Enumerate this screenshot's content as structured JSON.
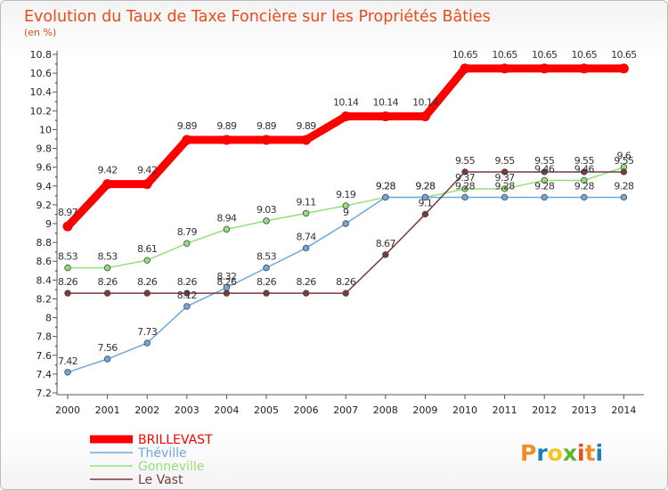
{
  "chart_data": {
    "type": "line",
    "title": "Evolution du Taux de Taxe Foncière sur les Propriétés Bâties",
    "subtitle": "(en %)",
    "xlabel": "",
    "ylabel": "",
    "ylim": [
      7.2,
      10.8
    ],
    "yticks": [
      "7.2",
      "7.4",
      "7.6",
      "7.8",
      "8",
      "8.2",
      "8.4",
      "8.6",
      "8.8",
      "9",
      "9.2",
      "9.4",
      "9.6",
      "9.8",
      "10",
      "10.2",
      "10.4",
      "10.6",
      "10.8"
    ],
    "x": [
      "2000",
      "2001",
      "2002",
      "2003",
      "2004",
      "2005",
      "2006",
      "2007",
      "2008",
      "2009",
      "2010",
      "2011",
      "2012",
      "2013",
      "2014"
    ],
    "series": [
      {
        "name": "BRILLEVAST",
        "color": "#ff0000",
        "values": [
          8.97,
          9.42,
          9.42,
          9.89,
          9.89,
          9.89,
          9.89,
          10.14,
          10.14,
          10.14,
          10.65,
          10.65,
          10.65,
          10.65,
          10.65
        ],
        "labels": [
          "8.97",
          "9.42",
          "9.42",
          "9.89",
          "9.89",
          "9.89",
          "9.89",
          "10.14",
          "10.14",
          "10.14",
          "10.65",
          "10.65",
          "10.65",
          "10.65",
          "10.65"
        ]
      },
      {
        "name": "Théville",
        "color": "#6fa8dc",
        "values": [
          7.42,
          7.56,
          7.73,
          8.12,
          8.32,
          8.53,
          8.74,
          9.0,
          9.28,
          9.28,
          9.28,
          9.28,
          9.28,
          9.28,
          9.28
        ],
        "labels": [
          "7.42",
          "7.56",
          "7.73",
          "8.12",
          "8.32",
          "8.53",
          "8.74",
          "9",
          "9.28",
          "9.28",
          "9.28",
          "9.28",
          "9.28",
          "9.28",
          "9.28"
        ]
      },
      {
        "name": "Gonneville",
        "color": "#93e07a",
        "values": [
          8.53,
          8.53,
          8.61,
          8.79,
          8.94,
          9.03,
          9.11,
          9.19,
          9.28,
          9.28,
          9.37,
          9.37,
          9.46,
          9.46,
          9.6
        ],
        "labels": [
          "8.53",
          "8.53",
          "8.61",
          "8.79",
          "8.94",
          "9.03",
          "9.11",
          "9.19",
          "9.28",
          "9.28",
          "9.37",
          "9.37",
          "9.46",
          "9.46",
          "9.6"
        ]
      },
      {
        "name": "Le Vast",
        "color": "#7a3b3b",
        "values": [
          8.26,
          8.26,
          8.26,
          8.26,
          8.26,
          8.26,
          8.26,
          8.26,
          8.67,
          9.1,
          9.55,
          9.55,
          9.55,
          9.55,
          9.55
        ],
        "labels": [
          "8.26",
          "8.26",
          "8.26",
          "8.26",
          "8.26",
          "8.26",
          "8.26",
          "8.26",
          "8.67",
          "9.1",
          "9.55",
          "9.55",
          "9.55",
          "9.55",
          "9.55"
        ]
      }
    ],
    "legend_position": "bottom-left",
    "grid": false
  },
  "brand": {
    "letters": [
      "P",
      "r",
      "o",
      "x",
      "i",
      "t",
      "i"
    ],
    "colors": [
      "#f28c28",
      "#1a7fc1",
      "#f2c71b",
      "#5cb531",
      "#e84d1b",
      "#f28c28",
      "#1a7fc1"
    ]
  }
}
